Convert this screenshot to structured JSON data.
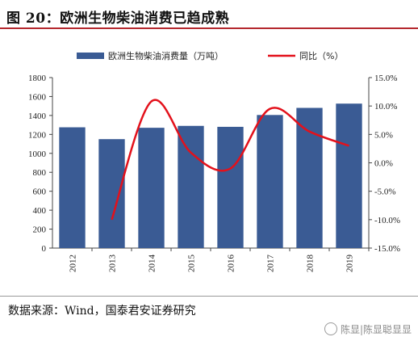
{
  "figure": {
    "title": "图 20：欧洲生物柴油消费已趋成熟",
    "source": "数据来源：Wind，国泰君安证券研究",
    "watermark": "陈显|陈显聪显显"
  },
  "chart_data": {
    "type": "bar+line",
    "categories": [
      "2012",
      "2013",
      "2014",
      "2015",
      "2016",
      "2017",
      "2018",
      "2019"
    ],
    "series": [
      {
        "name": "欧洲生物柴油消费量（万吨）",
        "type": "bar",
        "axis": "left",
        "color": "#3a5b94",
        "values": [
          1275,
          1150,
          1270,
          1290,
          1280,
          1405,
          1480,
          1525
        ]
      },
      {
        "name": "同比（%）",
        "type": "line",
        "axis": "right",
        "color": "#e3111b",
        "values": [
          null,
          -10.0,
          10.8,
          1.8,
          -1.0,
          9.5,
          5.5,
          3.0
        ]
      }
    ],
    "ylim_left": [
      0,
      1800
    ],
    "yticks_left": [
      "0",
      "200",
      "400",
      "600",
      "800",
      "1000",
      "1200",
      "1400",
      "1600",
      "1800"
    ],
    "ylim_right": [
      -15,
      15
    ],
    "yticks_right": [
      "-15.0%",
      "-10.0%",
      "-5.0%",
      "0.0%",
      "5.0%",
      "10.0%",
      "15.0%"
    ],
    "legend_position": "top-center",
    "grid": false
  }
}
